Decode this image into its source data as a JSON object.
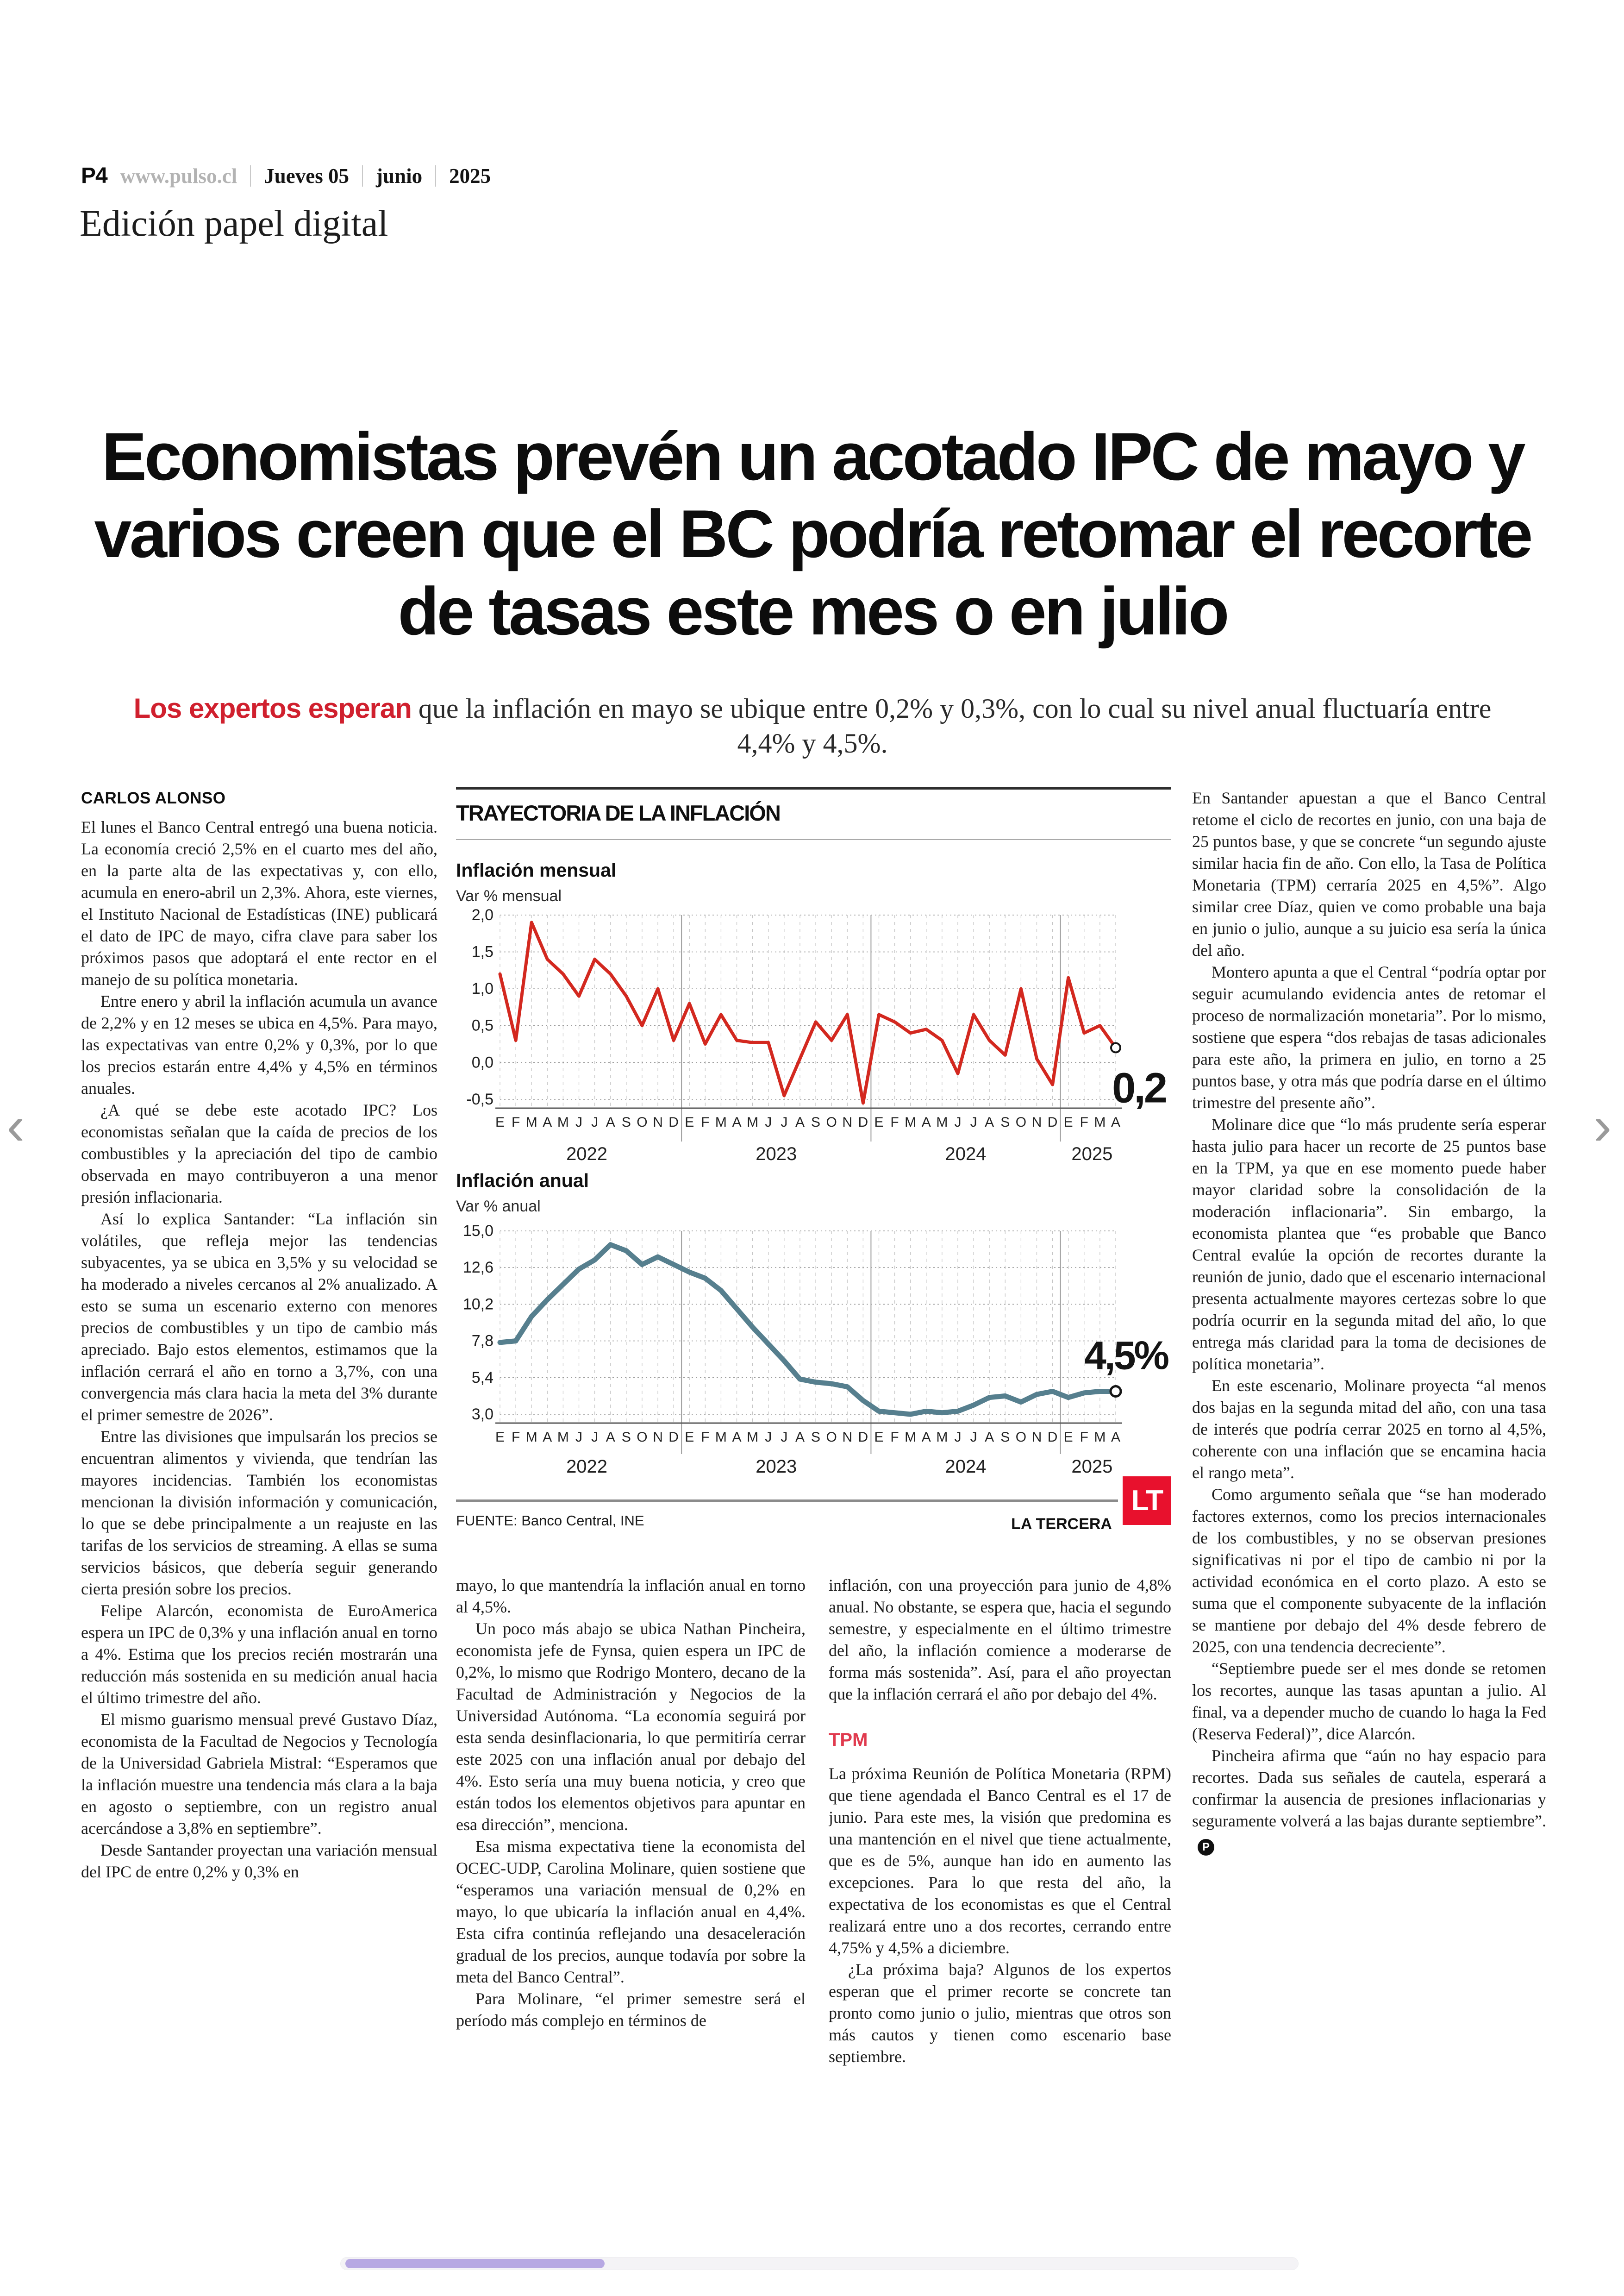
{
  "colors": {
    "accent_red": "#d0202e",
    "tpm_red": "#e03a4e",
    "logo_red": "#e8112d",
    "line_red": "#d3281f",
    "line_teal": "#567f8e"
  },
  "page": {
    "page_number": "P4",
    "site": "www.pulso.cl",
    "date_day": "Jueves 05",
    "date_month": "junio",
    "date_year": "2025",
    "edition_label": "Edición papel digital",
    "prev_icon": "‹",
    "next_icon": "›"
  },
  "article": {
    "headline": "Economistas prevén un acotado IPC de mayo y varios creen que el BC podría retomar el recorte de tasas este mes o en julio",
    "lead_highlight": "Los expertos esperan",
    "lead_rest": " que la inflación en mayo se ubique entre 0,2% y 0,3%, con lo cual su nivel anual fluctuaría entre 4,4% y 4,5%.",
    "byline": "CARLOS ALONSO",
    "end_mark": "P",
    "tpm_subhead": "TPM",
    "column1": [
      "El lunes el Banco Central entregó una buena noticia. La economía creció 2,5% en el cuarto mes del año, en la parte alta de las expectativas y, con ello, acumula en enero-abril un 2,3%. Ahora, este viernes, el Instituto Nacional de Estadísticas (INE) publicará el dato de IPC de mayo, cifra clave para saber los próximos pasos que adoptará el ente rector en el manejo de su política monetaria.",
      "Entre enero y abril la inflación acumula un avance de 2,2% y en 12 meses se ubica en 4,5%. Para mayo, las expectativas van entre 0,2% y 0,3%, por lo que los precios estarán entre 4,4% y 4,5% en términos anuales.",
      "¿A qué se debe este acotado IPC? Los economistas señalan que la caída de precios de los combustibles y la apreciación del tipo de cambio observada en mayo contribuyeron a una menor presión inflacionaria.",
      "Así lo explica Santander: “La inflación sin volátiles, que refleja mejor las tendencias subyacentes, ya se ubica en 3,5% y su velocidad se ha moderado a niveles cercanos al 2% anualizado. A esto se suma un escenario externo con menores precios de combustibles y un tipo de cambio más apreciado. Bajo estos elementos, estimamos que la inflación cerrará el año en torno a 3,7%, con una convergencia más clara hacia la meta del 3% durante el primer semestre de 2026”.",
      "Entre las divisiones que impulsarán los precios se encuentran alimentos y vivienda, que tendrían las mayores incidencias. También los economistas mencionan la división información y comunicación, lo que se debe principalmente a un reajuste en las tarifas de los servicios de streaming. A ellas se suma servicios básicos, que debería seguir generando cierta presión sobre los precios.",
      "Felipe Alarcón, economista de EuroAmerica espera un IPC de 0,3% y una inflación anual en torno a 4%. Estima que los precios recién mostrarán una reducción más sostenida en su medición anual hacia el último trimestre del año.",
      "El mismo guarismo mensual prevé Gustavo Díaz, economista de la Facultad de Negocios y Tecnología de la Universidad Gabriela Mistral: “Esperamos que la inflación muestre una tendencia más clara a la baja en agosto o septiembre, con un registro anual acercándose a 3,8% en septiembre”.",
      "Desde Santander proyectan una variación mensual del IPC de entre 0,2% y 0,3% en"
    ],
    "column2": [
      "mayo, lo que mantendría la inflación anual en torno al 4,5%.",
      "Un poco más abajo se ubica Nathan Pincheira, economista jefe de Fynsa, quien espera un IPC de 0,2%, lo mismo que Rodrigo Montero, decano de la Facultad de Administración y Negocios de la Universidad Autónoma. “La economía seguirá por esta senda desinflacionaria, lo que permitiría cerrar este 2025 con una inflación anual por debajo del 4%. Esto sería una muy buena noticia, y creo que están todos los elementos objetivos para apuntar en esa dirección”, menciona.",
      "Esa misma expectativa tiene la economista del OCEC-UDP, Carolina Molinare, quien sostiene que “esperamos una variación mensual de 0,2% en mayo, lo que ubicaría la inflación anual en 4,4%. Esta cifra continúa reflejando una desaceleración gradual de los precios, aunque todavía por sobre la meta del Banco Central”.",
      "Para Molinare, “el primer semestre será el período más complejo en términos de"
    ],
    "column3_before": [
      "inflación, con una proyección para junio de 4,8% anual. No obstante, se espera que, hacia el segundo semestre, y especialmente en el último trimestre del año, la inflación comience a moderarse de forma más sostenida”. Así, para el año proyectan que la inflación cerrará el año por debajo del 4%."
    ],
    "column3_after": [
      "La próxima Reunión de Política Monetaria (RPM) que tiene agendada el Banco Central es el 17 de junio. Para este mes, la visión que predomina es una mantención en el nivel que tiene actualmente, que es de 5%, aunque han ido en aumento las excepciones. Para lo que resta del año, la expectativa de los economistas es que el Central realizará entre uno a dos recortes, cerrando entre 4,75% y 4,5% a diciembre.",
      "¿La próxima baja? Algunos de los expertos esperan que el primer recorte se concrete tan pronto como junio o julio, mientras que otros son más cautos y tienen como escenario base septiembre."
    ],
    "column4": [
      "En Santander apuestan a que el Banco Central retome el ciclo de recortes en junio, con una baja de 25 puntos base, y que se concrete “un segundo ajuste similar hacia fin de año. Con ello, la Tasa de Política Monetaria (TPM) cerraría 2025 en 4,5%”. Algo similar cree Díaz, quien ve como probable una baja en junio o julio, aunque a su juicio esa sería la única del año.",
      "Montero apunta a que el Central “podría optar por seguir acumulando evidencia antes de retomar el proceso de normalización monetaria”. Por lo mismo, sostiene que espera “dos rebajas de tasas adicionales para este año, la primera en julio, en torno a 25 puntos base, y otra más que podría darse en el último trimestre del presente año”.",
      "Molinare dice que “lo más prudente sería esperar hasta julio para hacer un recorte de 25 puntos base en la TPM, ya que en ese momento puede haber mayor claridad sobre la consolidación de la moderación inflacionaria”. Sin embargo, la economista plantea que “es probable que Banco Central evalúe la opción de recortes durante la reunión de junio, dado que el escenario internacional presenta actualmente mayores certezas sobre lo que podría ocurrir en la segunda mitad del año, lo que entrega más claridad para la toma de decisiones de política monetaria”.",
      "En este escenario, Molinare proyecta “al menos dos bajas en la segunda mitad del año, con una tasa de interés que podría cerrar 2025 en torno al 4,5%, coherente con una inflación que se encamina hacia el rango meta”.",
      "Como argumento señala que “se han moderado factores externos, como los precios internacionales de los combustibles, y no se observan presiones significativas ni por el tipo de cambio ni por la actividad económica en el corto plazo. A esto se suma que el componente subyacente de la inflación se mantiene por debajo del 4% desde febrero de 2025, con una tendencia decreciente”.",
      "“Septiembre puede ser el mes donde se retomen los recortes, aunque las tasas apuntan a julio. Al final, va a depender mucho de cuando lo haga la Fed (Reserva Federal)”, dice Alarcón.",
      "Pincheira afirma que “aún no hay espacio para recortes. Dada sus señales de cautela, esperará a confirmar la ausencia de presiones inflacionarias y seguramente volverá a las bajas durante septiembre”."
    ]
  },
  "infographic": {
    "title": "TRAYECTORIA DE LA INFLACIÓN",
    "source": "FUENTE: Banco Central, INE",
    "credit": "LA TERCERA",
    "logo_text": "LT"
  },
  "chart_data": [
    {
      "type": "line",
      "title": "Inflación mensual",
      "ylabel": "Var % mensual",
      "categories": [
        "E",
        "F",
        "M",
        "A",
        "M",
        "J",
        "J",
        "A",
        "S",
        "O",
        "N",
        "D",
        "E",
        "F",
        "M",
        "A",
        "M",
        "J",
        "J",
        "A",
        "S",
        "O",
        "N",
        "D",
        "E",
        "F",
        "M",
        "A",
        "M",
        "J",
        "J",
        "A",
        "S",
        "O",
        "N",
        "D",
        "E",
        "F",
        "M",
        "A"
      ],
      "years": [
        {
          "label": "2022",
          "from": 0,
          "to": 11
        },
        {
          "label": "2023",
          "from": 12,
          "to": 23
        },
        {
          "label": "2024",
          "from": 24,
          "to": 35
        },
        {
          "label": "2025",
          "from": 36,
          "to": 39
        }
      ],
      "values": [
        1.2,
        0.3,
        1.9,
        1.4,
        1.2,
        0.9,
        1.4,
        1.2,
        0.9,
        0.5,
        1.0,
        0.3,
        0.8,
        0.25,
        0.65,
        0.3,
        0.27,
        0.27,
        -0.45,
        0.05,
        0.55,
        0.3,
        0.65,
        -0.55,
        0.65,
        0.55,
        0.4,
        0.45,
        0.3,
        -0.15,
        0.65,
        0.3,
        0.1,
        1.0,
        0.05,
        -0.3,
        1.15,
        0.4,
        0.5,
        0.2
      ],
      "ylim": [
        -0.5,
        2.0
      ],
      "yticks": [
        2.0,
        1.5,
        1.0,
        0.5,
        0.0,
        -0.5
      ],
      "line_color": "#d3281f",
      "end_label": "0,2",
      "grid": true,
      "legend": "none"
    },
    {
      "type": "line",
      "title": "Inflación anual",
      "ylabel": "Var % anual",
      "categories": [
        "E",
        "F",
        "M",
        "A",
        "M",
        "J",
        "J",
        "A",
        "S",
        "O",
        "N",
        "D",
        "E",
        "F",
        "M",
        "A",
        "M",
        "J",
        "J",
        "A",
        "S",
        "O",
        "N",
        "D",
        "E",
        "F",
        "M",
        "A",
        "M",
        "J",
        "J",
        "A",
        "S",
        "O",
        "N",
        "D",
        "E",
        "F",
        "M",
        "A"
      ],
      "years": [
        {
          "label": "2022",
          "from": 0,
          "to": 11
        },
        {
          "label": "2023",
          "from": 12,
          "to": 23
        },
        {
          "label": "2024",
          "from": 24,
          "to": 35
        },
        {
          "label": "2025",
          "from": 36,
          "to": 39
        }
      ],
      "values": [
        7.7,
        7.8,
        9.4,
        10.5,
        11.5,
        12.5,
        13.1,
        14.1,
        13.7,
        12.8,
        13.3,
        12.8,
        12.3,
        11.9,
        11.1,
        9.9,
        8.7,
        7.6,
        6.5,
        5.3,
        5.1,
        5.0,
        4.8,
        3.9,
        3.2,
        3.1,
        3.0,
        3.2,
        3.1,
        3.2,
        3.6,
        4.1,
        4.2,
        3.8,
        4.3,
        4.5,
        4.1,
        4.4,
        4.5,
        4.5
      ],
      "ylim": [
        3.0,
        15.0
      ],
      "yticks": [
        15.0,
        12.6,
        10.2,
        7.8,
        5.4,
        3.0
      ],
      "line_color": "#567f8e",
      "end_label": "4,5%",
      "grid": true,
      "legend": "none"
    }
  ]
}
